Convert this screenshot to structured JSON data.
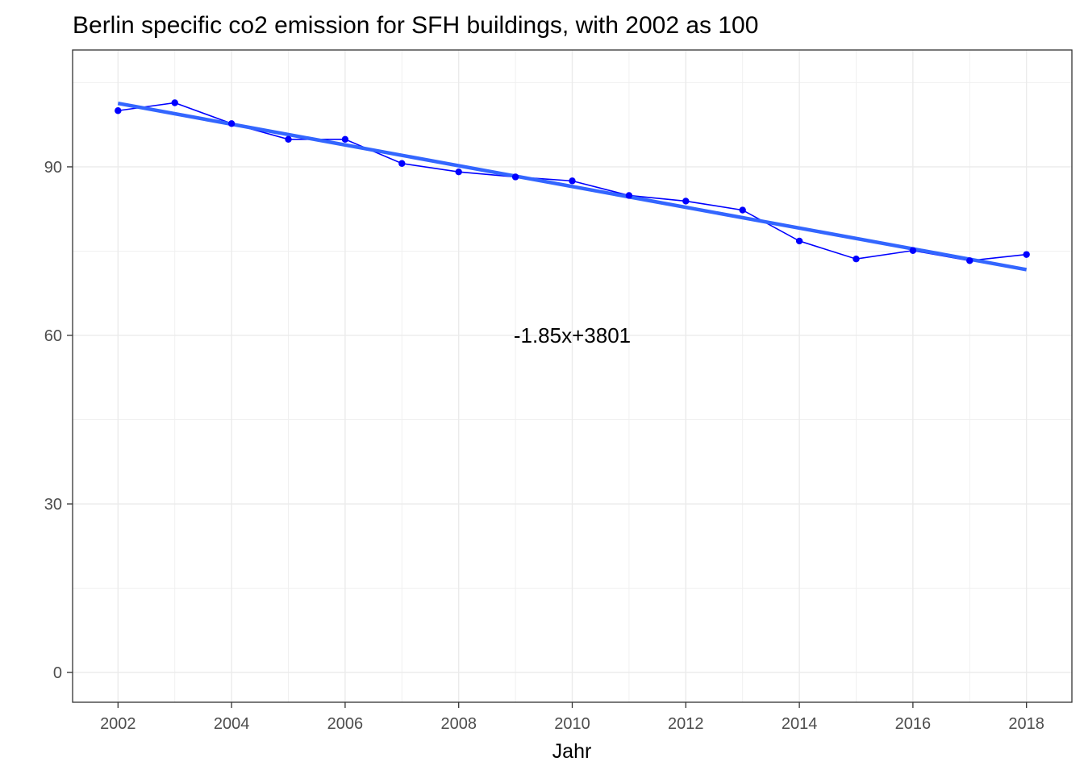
{
  "chart_data": {
    "type": "line",
    "title": "Berlin specific co2 emission for SFH buildings, with 2002 as 100",
    "xlabel": "Jahr",
    "ylabel": "",
    "x": [
      2002,
      2003,
      2004,
      2005,
      2006,
      2007,
      2008,
      2009,
      2010,
      2011,
      2012,
      2013,
      2014,
      2015,
      2016,
      2017,
      2018
    ],
    "series": [
      {
        "values": [
          100.0,
          101.4,
          97.7,
          94.9,
          94.9,
          90.6,
          89.1,
          88.2,
          87.5,
          84.9,
          83.9,
          82.3,
          76.8,
          73.6,
          75.1,
          73.3,
          74.4
        ],
        "color": "#0000ff"
      }
    ],
    "trend": {
      "slope": -1.85,
      "intercept": 3801,
      "start": 101.3,
      "end": 71.7,
      "color": "#3366ff"
    },
    "annotation": {
      "text": "-1.85x+3801",
      "x": 2010,
      "y": 60
    },
    "xlim": [
      2001.2,
      2018.8
    ],
    "ylim": [
      -5.3,
      110.8
    ],
    "xticks": [
      2002,
      2004,
      2006,
      2008,
      2010,
      2012,
      2014,
      2016,
      2018
    ],
    "yticks": [
      0,
      30,
      60,
      90
    ],
    "grid": true
  }
}
